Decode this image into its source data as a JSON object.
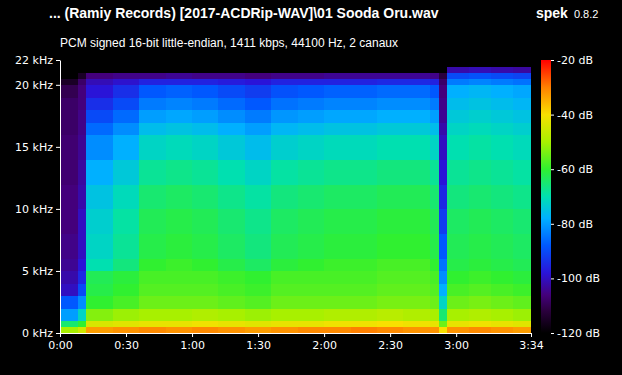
{
  "chart_data": {
    "type": "heatmap",
    "title": "... (Ramiy Records) [2017-ACDRip-WAV]\\01 Sooda Oru.wav",
    "app_name": "spek",
    "app_version": "0.8.2",
    "subtitle": "PCM signed 16-bit little-endian, 1411 kbps, 44100 Hz, 2 canaux",
    "xlim": [
      0,
      214
    ],
    "xticks": [
      {
        "value": 0,
        "label": "0:00"
      },
      {
        "value": 30,
        "label": "0:30"
      },
      {
        "value": 60,
        "label": "1:00"
      },
      {
        "value": 90,
        "label": "1:30"
      },
      {
        "value": 120,
        "label": "2:00"
      },
      {
        "value": 150,
        "label": "2:30"
      },
      {
        "value": 180,
        "label": "3:00"
      },
      {
        "value": 214,
        "label": "3:34"
      }
    ],
    "ylim": [
      0,
      22
    ],
    "yticks": [
      {
        "value": 0,
        "label": "0 kHz"
      },
      {
        "value": 5,
        "label": "5 kHz"
      },
      {
        "value": 10,
        "label": "10 kHz"
      },
      {
        "value": 15,
        "label": "15 kHz"
      },
      {
        "value": 20,
        "label": "20 kHz"
      },
      {
        "value": 22,
        "label": "22 kHz"
      }
    ],
    "time_bins": [
      0,
      8,
      12,
      24,
      36,
      48,
      60,
      72,
      84,
      96,
      108,
      120,
      132,
      144,
      156,
      168,
      172,
      176,
      186,
      196,
      206,
      214
    ],
    "freq_bins": [
      0,
      0.5,
      1,
      2,
      3,
      4,
      5,
      6,
      8,
      10,
      12,
      14,
      16,
      17,
      18,
      19,
      20,
      20.5,
      21,
      21.5,
      22
    ],
    "cells": [
      [
        -50,
        -45,
        -33,
        -32,
        -31,
        -32,
        -31,
        -32,
        -33,
        -32,
        -31,
        -31,
        -30,
        -31,
        -32,
        -32,
        -40,
        -32,
        -31,
        -32,
        -33
      ],
      [
        -65,
        -60,
        -44,
        -43,
        -42,
        -42,
        -41,
        -42,
        -43,
        -42,
        -42,
        -41,
        -41,
        -40,
        -41,
        -42,
        -55,
        -42,
        -41,
        -42,
        -43
      ],
      [
        -80,
        -72,
        -53,
        -51,
        -50,
        -50,
        -49,
        -50,
        -51,
        -50,
        -50,
        -49,
        -49,
        -48,
        -49,
        -50,
        -65,
        -50,
        -49,
        -50,
        -51
      ],
      [
        -88,
        -82,
        -60,
        -58,
        -55,
        -55,
        -55,
        -56,
        -57,
        -55,
        -55,
        -55,
        -55,
        -54,
        -54,
        -55,
        -72,
        -55,
        -54,
        -55,
        -56
      ],
      [
        -100,
        -90,
        -62,
        -60,
        -57,
        -57,
        -57,
        -58,
        -59,
        -57,
        -57,
        -57,
        -57,
        -56,
        -56,
        -57,
        -78,
        -58,
        -57,
        -58,
        -59
      ],
      [
        -102,
        -95,
        -63,
        -61,
        -58,
        -58,
        -58,
        -59,
        -60,
        -58,
        -58,
        -58,
        -58,
        -57,
        -57,
        -58,
        -82,
        -60,
        -59,
        -60,
        -61
      ],
      [
        -104,
        -98,
        -70,
        -66,
        -60,
        -59,
        -60,
        -62,
        -64,
        -61,
        -60,
        -59,
        -59,
        -58,
        -58,
        -60,
        -85,
        -62,
        -61,
        -62,
        -63
      ],
      [
        -105,
        -100,
        -72,
        -68,
        -62,
        -61,
        -62,
        -64,
        -66,
        -63,
        -62,
        -61,
        -61,
        -60,
        -60,
        -62,
        -88,
        -63,
        -62,
        -63,
        -64
      ],
      [
        -106,
        -100,
        -73,
        -69,
        -63,
        -62,
        -63,
        -65,
        -67,
        -64,
        -63,
        -62,
        -62,
        -61,
        -61,
        -63,
        -92,
        -64,
        -63,
        -64,
        -65
      ],
      [
        -106,
        -102,
        -75,
        -71,
        -65,
        -64,
        -65,
        -67,
        -69,
        -66,
        -65,
        -64,
        -64,
        -63,
        -63,
        -65,
        -95,
        -66,
        -65,
        -66,
        -67
      ],
      [
        -107,
        -103,
        -78,
        -74,
        -68,
        -67,
        -68,
        -70,
        -72,
        -69,
        -68,
        -67,
        -67,
        -66,
        -66,
        -68,
        -98,
        -68,
        -67,
        -68,
        -69
      ],
      [
        -107,
        -104,
        -82,
        -78,
        -72,
        -71,
        -72,
        -74,
        -76,
        -73,
        -72,
        -71,
        -71,
        -70,
        -70,
        -72,
        -100,
        -70,
        -69,
        -70,
        -71
      ],
      [
        -108,
        -105,
        -86,
        -82,
        -76,
        -75,
        -76,
        -78,
        -80,
        -77,
        -76,
        -75,
        -75,
        -74,
        -74,
        -76,
        -102,
        -72,
        -71,
        -72,
        -73
      ],
      [
        -108,
        -105,
        -90,
        -86,
        -80,
        -79,
        -80,
        -82,
        -84,
        -81,
        -80,
        -79,
        -79,
        -78,
        -78,
        -80,
        -104,
        -74,
        -73,
        -74,
        -75
      ],
      [
        -108,
        -106,
        -94,
        -90,
        -84,
        -83,
        -84,
        -86,
        -88,
        -85,
        -84,
        -83,
        -83,
        -82,
        -82,
        -84,
        -105,
        -76,
        -75,
        -76,
        -77
      ],
      [
        -110,
        -106,
        -98,
        -94,
        -88,
        -87,
        -88,
        -90,
        -92,
        -89,
        -88,
        -87,
        -87,
        -86,
        -86,
        -88,
        -106,
        -78,
        -77,
        -78,
        -79
      ],
      [
        -115,
        -108,
        -101,
        -99,
        -96,
        -96,
        -96,
        -97,
        -98,
        -96,
        -96,
        -96,
        -96,
        -95,
        -95,
        -96,
        -108,
        -84,
        -83,
        -84,
        -85
      ],
      [
        -120,
        -115,
        -106,
        -105,
        -105,
        -104,
        -105,
        -105,
        -106,
        -105,
        -105,
        -104,
        -104,
        -104,
        -104,
        -105,
        -112,
        -90,
        -89,
        -90,
        -91
      ],
      [
        -120,
        -120,
        -120,
        -120,
        -120,
        -120,
        -120,
        -120,
        -120,
        -120,
        -120,
        -120,
        -120,
        -120,
        -120,
        -120,
        -120,
        -102,
        -101,
        -102,
        -103
      ],
      [
        -120,
        -120,
        -120,
        -120,
        -120,
        -120,
        -120,
        -120,
        -120,
        -120,
        -120,
        -120,
        -120,
        -120,
        -120,
        -120,
        -120,
        -120,
        -120,
        -120,
        -120
      ]
    ],
    "colorbar": {
      "range": [
        -120,
        -20
      ],
      "ticks": [
        {
          "value": -20,
          "label": "-20 dB"
        },
        {
          "value": -40,
          "label": "-40 dB"
        },
        {
          "value": -60,
          "label": "-60 dB"
        },
        {
          "value": -80,
          "label": "-80 dB"
        },
        {
          "value": -100,
          "label": "-100 dB"
        },
        {
          "value": -120,
          "label": "-120 dB"
        }
      ]
    }
  }
}
